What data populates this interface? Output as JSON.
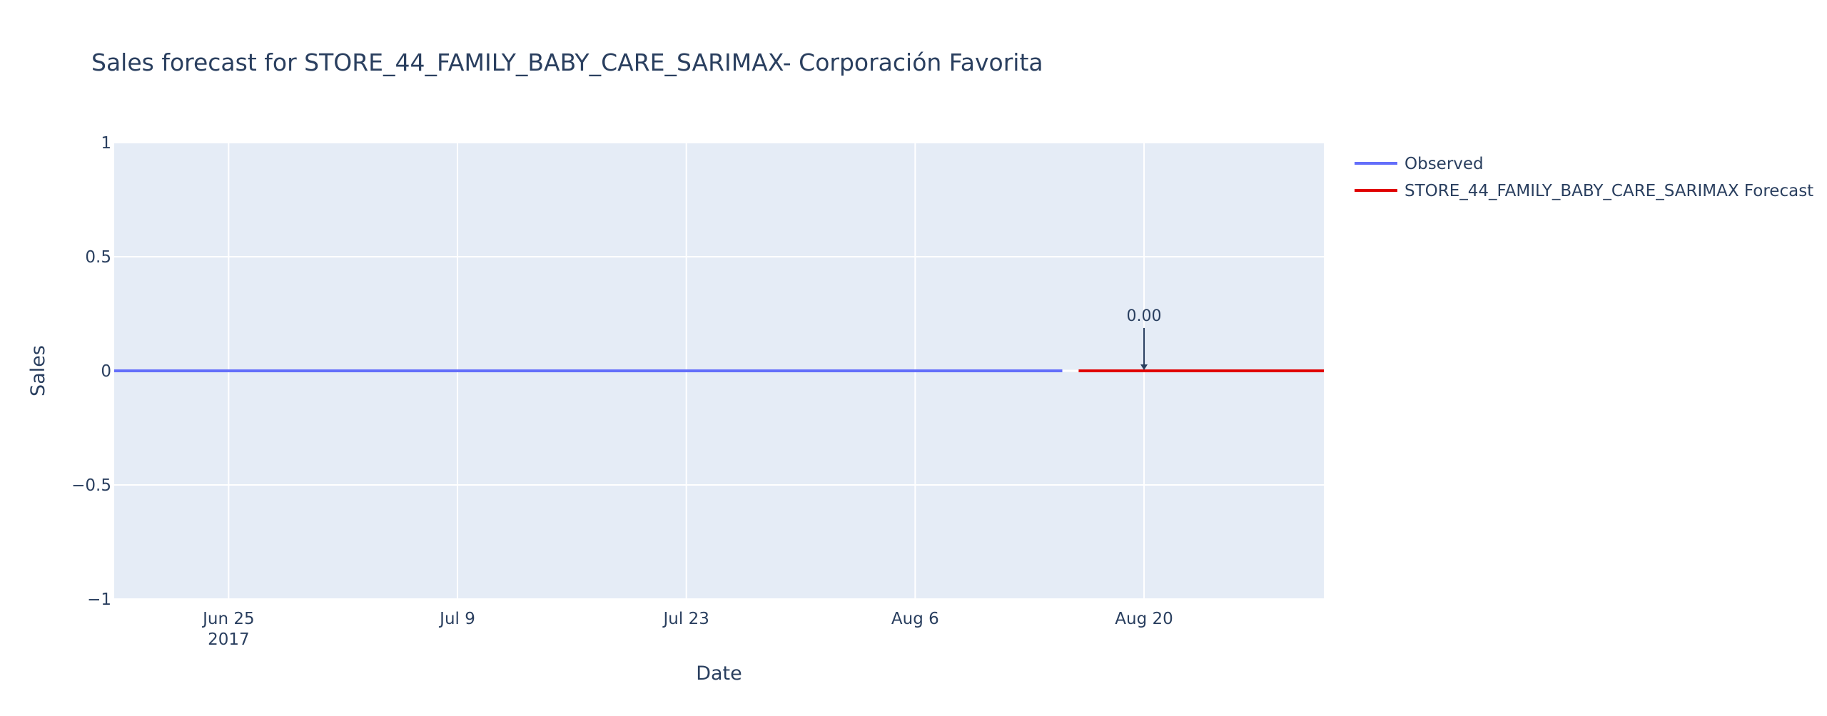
{
  "chart_data": {
    "type": "line",
    "title": "Sales forecast for STORE_44_FAMILY_BABY_CARE_SARIMAX- Corporación Favorita",
    "xlabel": "Date",
    "ylabel": "Sales",
    "xlim": [
      "2017-06-18",
      "2017-08-31"
    ],
    "ylim": [
      -1,
      1
    ],
    "grid": true,
    "legend_position": "top-right, outside plot",
    "x_ticks": [
      {
        "date": "2017-06-25",
        "label": "Jun 25",
        "sublabel": "2017"
      },
      {
        "date": "2017-07-09",
        "label": "Jul 9",
        "sublabel": ""
      },
      {
        "date": "2017-07-23",
        "label": "Jul 23",
        "sublabel": ""
      },
      {
        "date": "2017-08-06",
        "label": "Aug 6",
        "sublabel": ""
      },
      {
        "date": "2017-08-20",
        "label": "Aug 20",
        "sublabel": ""
      }
    ],
    "y_ticks": [
      {
        "value": 1,
        "label": "1"
      },
      {
        "value": 0.5,
        "label": "0.5"
      },
      {
        "value": 0,
        "label": "0"
      },
      {
        "value": -0.5,
        "label": "−0.5"
      },
      {
        "value": -1,
        "label": "−1"
      }
    ],
    "series": [
      {
        "name": "Observed",
        "color": "#636efa",
        "x": [
          "2017-06-18",
          "2017-08-15"
        ],
        "y": [
          0,
          0
        ]
      },
      {
        "name": "STORE_44_FAMILY_BABY_CARE_SARIMAX Forecast",
        "color": "#e00000",
        "x": [
          "2017-08-16",
          "2017-08-31"
        ],
        "y": [
          0,
          0
        ]
      }
    ],
    "annotations": [
      {
        "x": "2017-08-20",
        "y": 0,
        "text": "0.00",
        "arrow": true
      }
    ],
    "colors": {
      "plot_background": "#e5ecf6",
      "gridline": "#ffffff",
      "text": "#2a3f5f"
    }
  }
}
